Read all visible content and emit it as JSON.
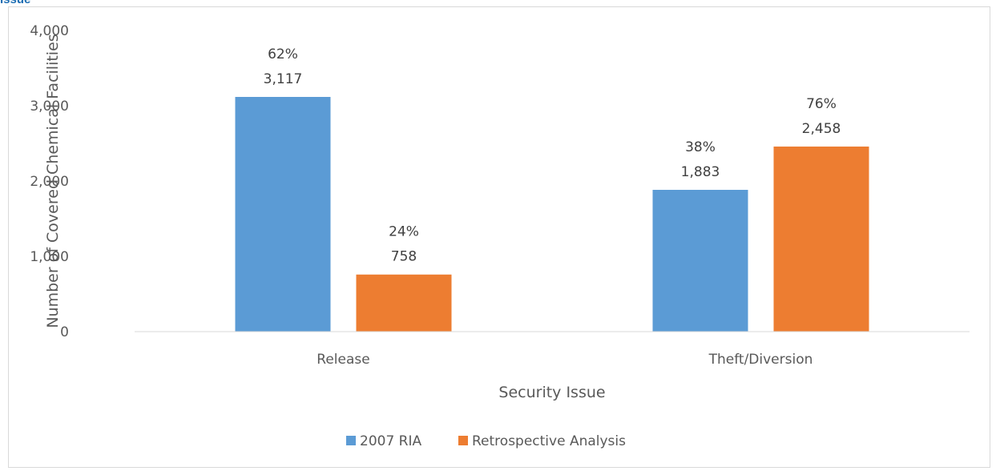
{
  "header": {
    "figure_label": "Issue"
  },
  "colors": {
    "series_1": "#5b9bd5",
    "series_2": "#ed7d31",
    "axis": "#d9d9d9",
    "text": "#595959"
  },
  "chart_data": {
    "type": "bar",
    "categories": [
      "Release",
      "Theft/Diversion"
    ],
    "series": [
      {
        "name": "2007 RIA",
        "values": [
          3117,
          1883
        ],
        "labels": [
          "3,117",
          "1,883"
        ],
        "percents": [
          "62%",
          "38%"
        ]
      },
      {
        "name": "Retrospective Analysis",
        "values": [
          758,
          2458
        ],
        "labels": [
          "758",
          "2,458"
        ],
        "percents": [
          "24%",
          "76%"
        ]
      }
    ],
    "title": "",
    "xlabel": "Security Issue",
    "ylabel": "Number of Covered Chemical Facilities",
    "ylim": [
      0,
      4000
    ],
    "yticks": [
      0,
      1000,
      2000,
      3000,
      4000
    ],
    "ytick_labels": [
      "0",
      "1,000",
      "2,000",
      "3,000",
      "4,000"
    ],
    "grid": false,
    "legend_position": "bottom"
  }
}
